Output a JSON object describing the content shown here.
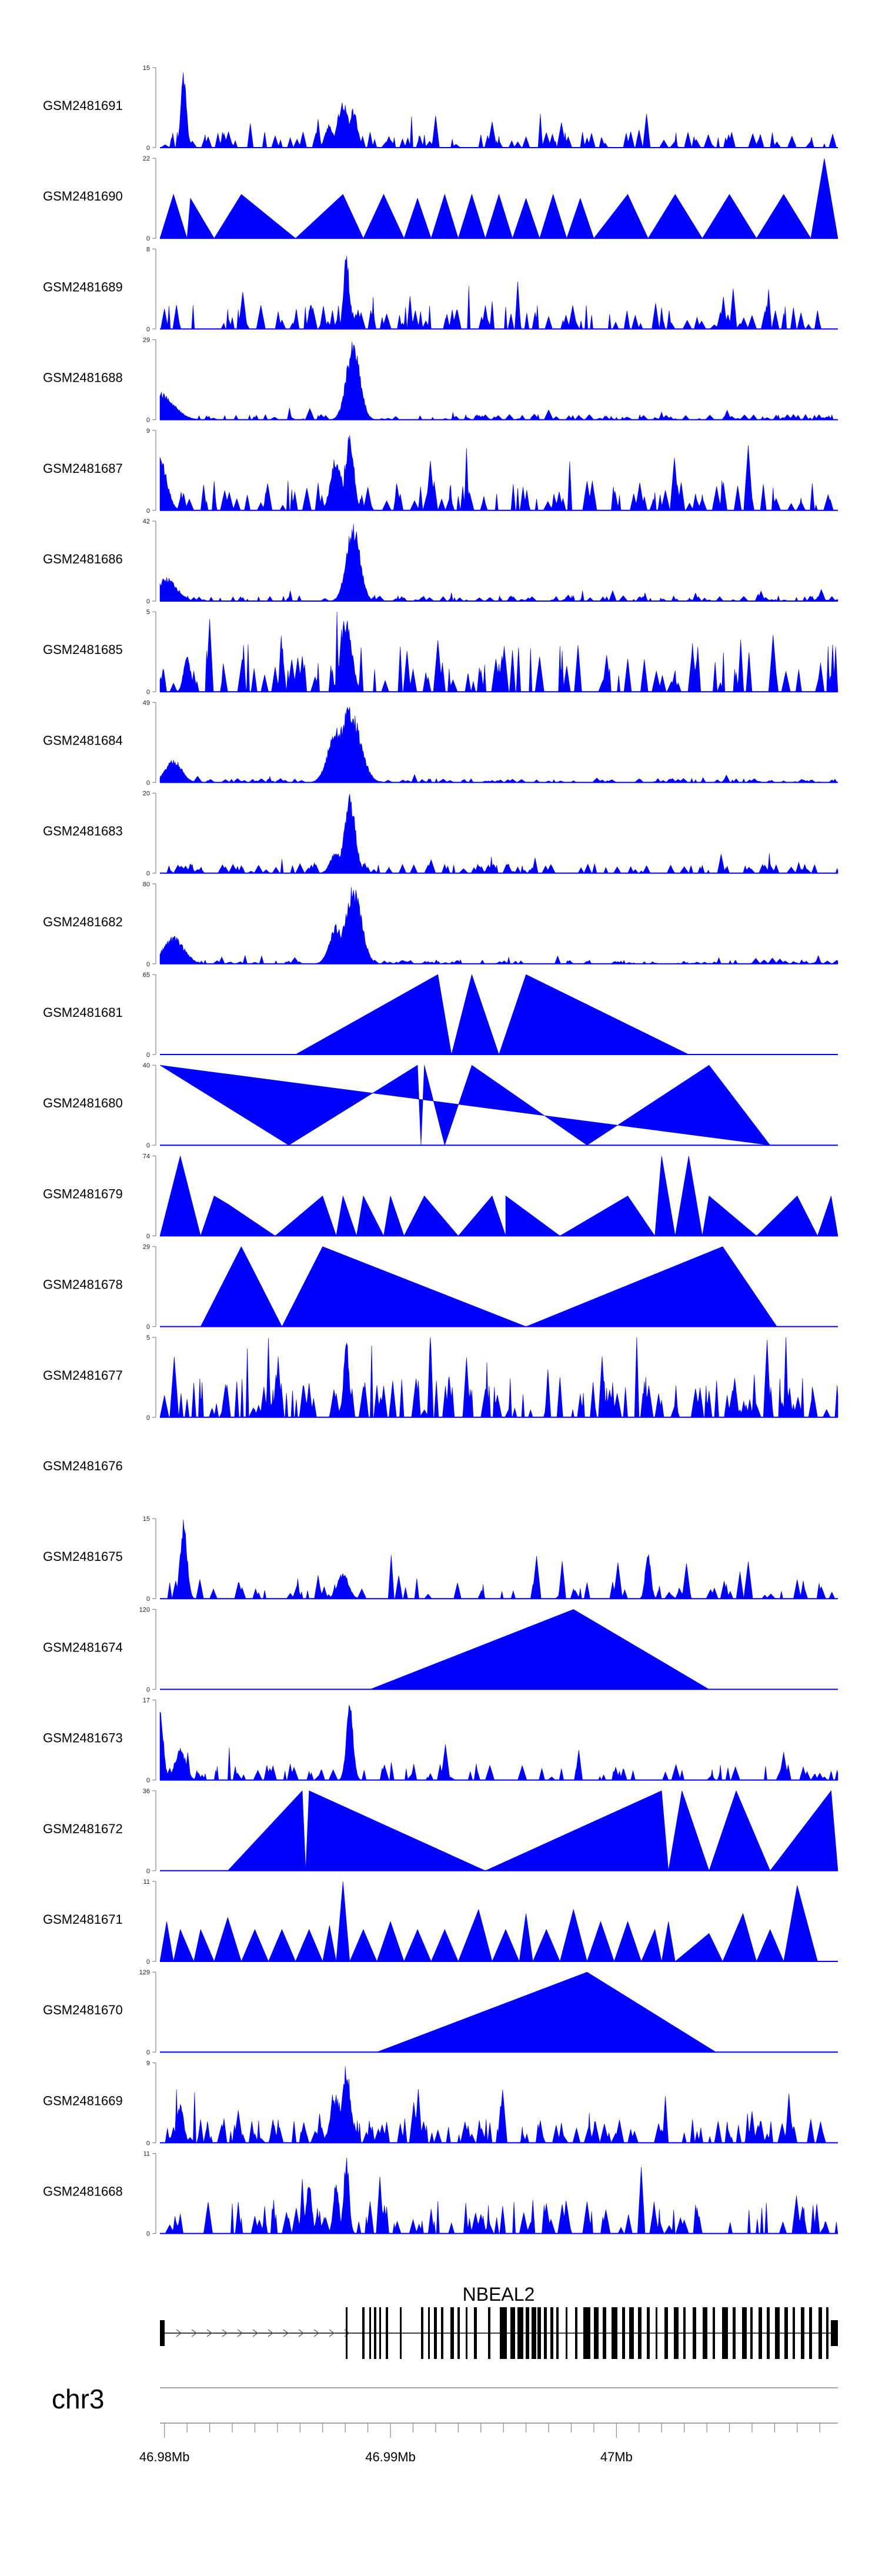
{
  "chart_data": {
    "type": "area",
    "title": "",
    "chromosome": "chr3",
    "gene": "NBEAL2",
    "xlim_mb": [
      46.9798,
      47.0098
    ],
    "x_ticks": [
      {
        "value": 46.98,
        "label": "46.98Mb"
      },
      {
        "value": 46.99,
        "label": "46.99Mb"
      },
      {
        "value": 47.0,
        "label": "47Mb"
      }
    ],
    "tracks": [
      {
        "name": "GSM2481691",
        "ymax": 15,
        "style": "noisy",
        "seed": 11,
        "density": 110,
        "peaks": [
          {
            "x": 0.035,
            "h": 1.0,
            "w": 0.004
          },
          {
            "x": 0.27,
            "h": 0.6,
            "w": 0.008
          },
          {
            "x": 0.285,
            "h": 0.5,
            "w": 0.006
          },
          {
            "x": 0.25,
            "h": 0.3,
            "w": 0.006
          }
        ],
        "base": 0.12
      },
      {
        "name": "GSM2481690",
        "ymax": 22,
        "style": "tri",
        "apexes": [
          [
            0.0,
            0.0
          ],
          [
            0.02,
            0.55
          ],
          [
            0.04,
            0.0
          ],
          [
            0.045,
            0.5
          ],
          [
            0.08,
            0.0
          ],
          [
            0.12,
            0.55
          ],
          [
            0.2,
            0.0
          ],
          [
            0.27,
            0.55
          ],
          [
            0.3,
            0.0
          ],
          [
            0.33,
            0.55
          ],
          [
            0.36,
            0.0
          ],
          [
            0.38,
            0.5
          ],
          [
            0.4,
            0.0
          ],
          [
            0.42,
            0.55
          ],
          [
            0.44,
            0.0
          ],
          [
            0.46,
            0.55
          ],
          [
            0.48,
            0.0
          ],
          [
            0.5,
            0.55
          ],
          [
            0.52,
            0.0
          ],
          [
            0.54,
            0.5
          ],
          [
            0.56,
            0.0
          ],
          [
            0.58,
            0.55
          ],
          [
            0.6,
            0.0
          ],
          [
            0.62,
            0.5
          ],
          [
            0.64,
            0.0
          ],
          [
            0.69,
            0.55
          ],
          [
            0.72,
            0.0
          ],
          [
            0.76,
            0.55
          ],
          [
            0.8,
            0.0
          ],
          [
            0.84,
            0.55
          ],
          [
            0.88,
            0.0
          ],
          [
            0.92,
            0.55
          ],
          [
            0.96,
            0.0
          ],
          [
            0.98,
            1.0
          ],
          [
            1.0,
            0.0
          ]
        ]
      },
      {
        "name": "GSM2481689",
        "ymax": 8,
        "style": "noisy",
        "seed": 23,
        "density": 120,
        "peaks": [
          {
            "x": 0.275,
            "h": 1.0,
            "w": 0.004
          }
        ],
        "base": 0.18
      },
      {
        "name": "GSM2481688",
        "ymax": 29,
        "style": "noisy",
        "seed": 31,
        "density": 130,
        "peaks": [
          {
            "x": 0.285,
            "h": 1.0,
            "w": 0.01
          },
          {
            "x": 0.0,
            "h": 0.35,
            "w": 0.02
          }
        ],
        "base": 0.04
      },
      {
        "name": "GSM2481687",
        "ymax": 9,
        "style": "noisy",
        "seed": 37,
        "density": 120,
        "peaks": [
          {
            "x": 0.28,
            "h": 1.0,
            "w": 0.006
          },
          {
            "x": 0.26,
            "h": 0.7,
            "w": 0.008
          },
          {
            "x": 0.0,
            "h": 0.7,
            "w": 0.01
          }
        ],
        "base": 0.22
      },
      {
        "name": "GSM2481686",
        "ymax": 42,
        "style": "noisy",
        "seed": 43,
        "density": 130,
        "peaks": [
          {
            "x": 0.285,
            "h": 1.0,
            "w": 0.01
          },
          {
            "x": 0.01,
            "h": 0.3,
            "w": 0.015
          }
        ],
        "base": 0.04
      },
      {
        "name": "GSM2481685",
        "ymax": 5,
        "style": "noisy",
        "seed": 47,
        "density": 100,
        "peaks": [
          {
            "x": 0.275,
            "h": 1.0,
            "w": 0.008
          },
          {
            "x": 0.04,
            "h": 0.5,
            "w": 0.005
          }
        ],
        "base": 0.35
      },
      {
        "name": "GSM2481684",
        "ymax": 49,
        "style": "noisy",
        "seed": 53,
        "density": 140,
        "peaks": [
          {
            "x": 0.28,
            "h": 1.0,
            "w": 0.015
          },
          {
            "x": 0.26,
            "h": 0.7,
            "w": 0.012
          },
          {
            "x": 0.02,
            "h": 0.3,
            "w": 0.012
          }
        ],
        "base": 0.03
      },
      {
        "name": "GSM2481683",
        "ymax": 20,
        "style": "noisy",
        "seed": 59,
        "density": 120,
        "peaks": [
          {
            "x": 0.28,
            "h": 1.0,
            "w": 0.008
          },
          {
            "x": 0.26,
            "h": 0.3,
            "w": 0.008
          }
        ],
        "base": 0.07
      },
      {
        "name": "GSM2481682",
        "ymax": 80,
        "style": "noisy",
        "seed": 61,
        "density": 130,
        "peaks": [
          {
            "x": 0.285,
            "h": 1.0,
            "w": 0.012
          },
          {
            "x": 0.26,
            "h": 0.5,
            "w": 0.01
          },
          {
            "x": 0.02,
            "h": 0.35,
            "w": 0.015
          }
        ],
        "base": 0.03
      },
      {
        "name": "GSM2481681",
        "ymax": 65,
        "style": "tri",
        "apexes": [
          [
            0.2,
            0.0
          ],
          [
            0.41,
            1.0
          ],
          [
            0.43,
            0.0
          ],
          [
            0.46,
            1.0
          ],
          [
            0.5,
            0.0
          ],
          [
            0.54,
            1.0
          ],
          [
            0.78,
            0.0
          ]
        ]
      },
      {
        "name": "GSM2481680",
        "ymax": 40,
        "style": "tri",
        "apexes": [
          [
            0.0,
            1.0
          ],
          [
            0.19,
            0.0
          ],
          [
            0.38,
            1.0
          ],
          [
            0.385,
            0.0
          ],
          [
            0.39,
            1.0
          ],
          [
            0.42,
            0.0
          ],
          [
            0.46,
            1.0
          ],
          [
            0.63,
            0.0
          ],
          [
            0.81,
            1.0
          ],
          [
            0.9,
            0.0
          ]
        ]
      },
      {
        "name": "GSM2481679",
        "ymax": 74,
        "style": "tri",
        "apexes": [
          [
            0.0,
            0.0
          ],
          [
            0.03,
            1.0
          ],
          [
            0.06,
            0.0
          ],
          [
            0.08,
            0.5
          ],
          [
            0.1,
            0.4
          ],
          [
            0.17,
            0.0
          ],
          [
            0.24,
            0.5
          ],
          [
            0.26,
            0.0
          ],
          [
            0.27,
            0.5
          ],
          [
            0.29,
            0.0
          ],
          [
            0.3,
            0.5
          ],
          [
            0.33,
            0.0
          ],
          [
            0.34,
            0.5
          ],
          [
            0.36,
            0.0
          ],
          [
            0.39,
            0.5
          ],
          [
            0.44,
            0.0
          ],
          [
            0.49,
            0.5
          ],
          [
            0.51,
            0.0
          ],
          [
            0.51,
            0.5
          ],
          [
            0.59,
            0.0
          ],
          [
            0.69,
            0.5
          ],
          [
            0.73,
            0.0
          ],
          [
            0.74,
            1.0
          ],
          [
            0.76,
            0.0
          ],
          [
            0.78,
            1.0
          ],
          [
            0.8,
            0.0
          ],
          [
            0.81,
            0.5
          ],
          [
            0.88,
            0.0
          ],
          [
            0.94,
            0.5
          ],
          [
            0.97,
            0.0
          ],
          [
            0.99,
            0.5
          ],
          [
            1.0,
            0.0
          ]
        ]
      },
      {
        "name": "GSM2481678",
        "ymax": 29,
        "style": "tri",
        "apexes": [
          [
            0.06,
            0.0
          ],
          [
            0.12,
            1.0
          ],
          [
            0.18,
            0.0
          ],
          [
            0.24,
            1.0
          ],
          [
            0.54,
            0.0
          ],
          [
            0.83,
            1.0
          ],
          [
            0.91,
            0.0
          ]
        ]
      },
      {
        "name": "GSM2481677",
        "ymax": 5,
        "style": "noisy",
        "seed": 67,
        "density": 140,
        "peaks": [
          {
            "x": 0.275,
            "h": 1.0,
            "w": 0.004
          }
        ],
        "base": 0.3
      },
      {
        "name": "GSM2481676",
        "ymax": null,
        "style": "empty"
      },
      {
        "name": "GSM2481675",
        "ymax": 15,
        "style": "noisy",
        "seed": 71,
        "density": 80,
        "peaks": [
          {
            "x": 0.035,
            "h": 1.0,
            "w": 0.005
          },
          {
            "x": 0.72,
            "h": 0.6,
            "w": 0.004
          },
          {
            "x": 0.27,
            "h": 0.35,
            "w": 0.008
          }
        ],
        "base": 0.15
      },
      {
        "name": "GSM2481674",
        "ymax": 120,
        "style": "tri",
        "apexes": [
          [
            0.31,
            0.0
          ],
          [
            0.61,
            1.0
          ],
          [
            0.81,
            0.0
          ]
        ]
      },
      {
        "name": "GSM2481673",
        "ymax": 17,
        "style": "noisy",
        "seed": 79,
        "density": 90,
        "peaks": [
          {
            "x": 0.28,
            "h": 1.0,
            "w": 0.005
          },
          {
            "x": 0.0,
            "h": 0.9,
            "w": 0.005
          },
          {
            "x": 0.03,
            "h": 0.4,
            "w": 0.008
          }
        ],
        "base": 0.12
      },
      {
        "name": "GSM2481672",
        "ymax": 36,
        "style": "tri",
        "apexes": [
          [
            0.1,
            0.0
          ],
          [
            0.21,
            1.0
          ],
          [
            0.215,
            0.0
          ],
          [
            0.22,
            1.0
          ],
          [
            0.48,
            0.0
          ],
          [
            0.74,
            1.0
          ],
          [
            0.75,
            0.0
          ],
          [
            0.77,
            1.0
          ],
          [
            0.81,
            0.0
          ],
          [
            0.85,
            1.0
          ],
          [
            0.9,
            0.0
          ],
          [
            0.99,
            1.0
          ],
          [
            1.0,
            0.0
          ]
        ]
      },
      {
        "name": "GSM2481671",
        "ymax": 11,
        "style": "tri",
        "apexes": [
          [
            0.0,
            0.0
          ],
          [
            0.01,
            0.5
          ],
          [
            0.02,
            0.0
          ],
          [
            0.03,
            0.4
          ],
          [
            0.05,
            0.0
          ],
          [
            0.06,
            0.4
          ],
          [
            0.08,
            0.0
          ],
          [
            0.1,
            0.55
          ],
          [
            0.12,
            0.0
          ],
          [
            0.14,
            0.4
          ],
          [
            0.16,
            0.0
          ],
          [
            0.18,
            0.4
          ],
          [
            0.2,
            0.0
          ],
          [
            0.22,
            0.4
          ],
          [
            0.24,
            0.0
          ],
          [
            0.25,
            0.45
          ],
          [
            0.26,
            0.0
          ],
          [
            0.27,
            1.0
          ],
          [
            0.28,
            0.0
          ],
          [
            0.3,
            0.4
          ],
          [
            0.32,
            0.0
          ],
          [
            0.34,
            0.5
          ],
          [
            0.36,
            0.0
          ],
          [
            0.38,
            0.4
          ],
          [
            0.4,
            0.0
          ],
          [
            0.42,
            0.4
          ],
          [
            0.44,
            0.0
          ],
          [
            0.47,
            0.65
          ],
          [
            0.49,
            0.0
          ],
          [
            0.51,
            0.4
          ],
          [
            0.53,
            0.0
          ],
          [
            0.54,
            0.6
          ],
          [
            0.55,
            0.0
          ],
          [
            0.57,
            0.4
          ],
          [
            0.59,
            0.0
          ],
          [
            0.61,
            0.65
          ],
          [
            0.63,
            0.0
          ],
          [
            0.65,
            0.5
          ],
          [
            0.67,
            0.0
          ],
          [
            0.69,
            0.5
          ],
          [
            0.71,
            0.0
          ],
          [
            0.73,
            0.4
          ],
          [
            0.74,
            0.0
          ],
          [
            0.75,
            0.5
          ],
          [
            0.76,
            0.0
          ],
          [
            0.81,
            0.35
          ],
          [
            0.83,
            0.0
          ],
          [
            0.86,
            0.6
          ],
          [
            0.88,
            0.0
          ],
          [
            0.9,
            0.4
          ],
          [
            0.92,
            0.0
          ],
          [
            0.94,
            0.95
          ],
          [
            0.97,
            0.0
          ]
        ]
      },
      {
        "name": "GSM2481670",
        "ymax": 129,
        "style": "tri",
        "apexes": [
          [
            0.32,
            0.0
          ],
          [
            0.63,
            1.0
          ],
          [
            0.82,
            0.0
          ]
        ]
      },
      {
        "name": "GSM2481669",
        "ymax": 9,
        "style": "noisy",
        "seed": 89,
        "density": 140,
        "peaks": [
          {
            "x": 0.275,
            "h": 1.0,
            "w": 0.006
          },
          {
            "x": 0.26,
            "h": 0.6,
            "w": 0.008
          },
          {
            "x": 0.03,
            "h": 0.5,
            "w": 0.005
          }
        ],
        "base": 0.18
      },
      {
        "name": "GSM2481668",
        "ymax": 11,
        "style": "noisy",
        "seed": 97,
        "density": 110,
        "peaks": [
          {
            "x": 0.275,
            "h": 1.0,
            "w": 0.004
          },
          {
            "x": 0.26,
            "h": 0.7,
            "w": 0.004
          },
          {
            "x": 0.22,
            "h": 0.65,
            "w": 0.004
          }
        ],
        "base": 0.25
      }
    ],
    "fill_color": "#0000ff",
    "gene_color": "#000000",
    "axis_color": "#888888"
  }
}
